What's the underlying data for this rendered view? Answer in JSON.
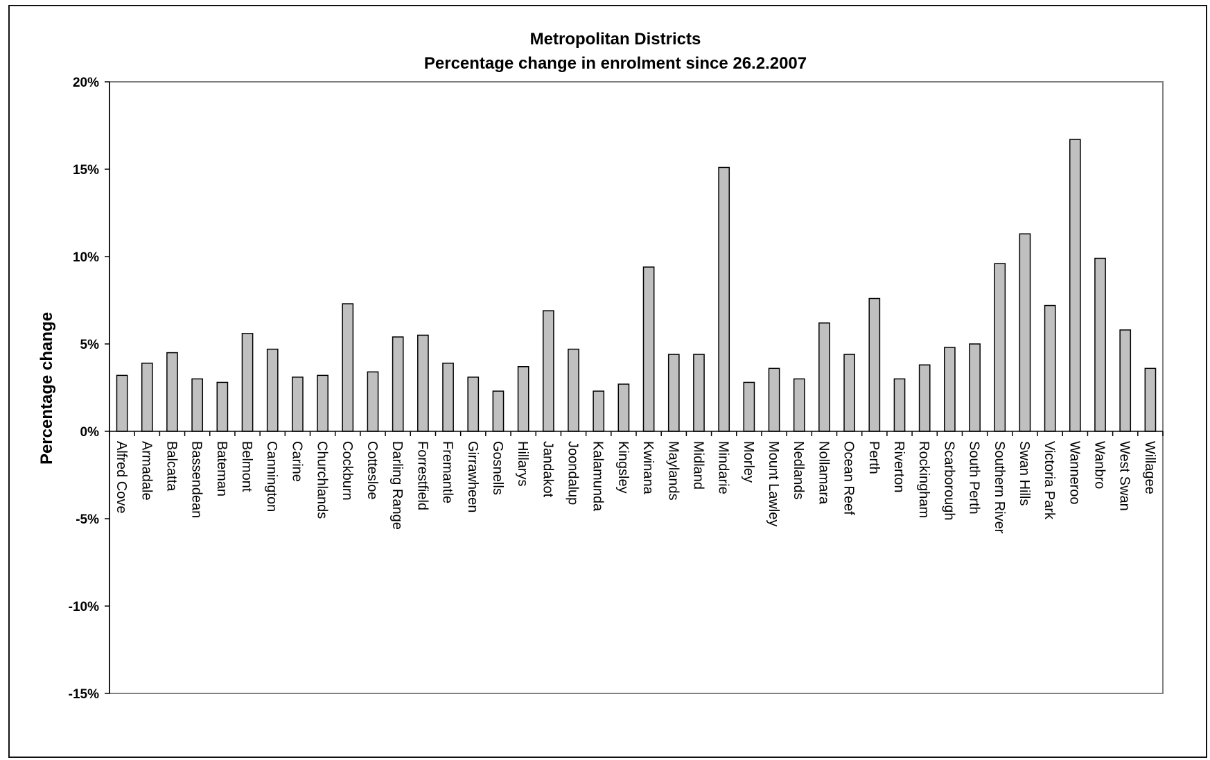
{
  "chart_data": {
    "type": "bar",
    "title": "Metropolitan Districts",
    "subtitle": "Percentage change in enrolment since 26.2.2007",
    "xlabel": "",
    "ylabel": "Percentage change",
    "ylim": [
      -15,
      20
    ],
    "ytick_step": 5,
    "ytick_labels": [
      "20%",
      "15%",
      "10%",
      "5%",
      "0%",
      "-5%",
      "-10%",
      "-15%"
    ],
    "grid": false,
    "legend": "none",
    "colors": {
      "bar_fill": "#c0c0c0",
      "bar_stroke": "#000000",
      "plot_border": "#808080",
      "axis": "#000000"
    },
    "categories": [
      "Alfred Cove",
      "Armadale",
      "Balcatta",
      "Bassendean",
      "Bateman",
      "Belmont",
      "Cannington",
      "Carine",
      "Churchlands",
      "Cockburn",
      "Cottesloe",
      "Darling Range",
      "Forrestfield",
      "Fremantle",
      "Girrawheen",
      "Gosnells",
      "Hillarys",
      "Jandakot",
      "Joondalup",
      "Kalamunda",
      "Kingsley",
      "Kwinana",
      "Maylands",
      "Midland",
      "Mindarie",
      "Morley",
      "Mount Lawley",
      "Nedlands",
      "Nollamara",
      "Ocean Reef",
      "Perth",
      "Riverton",
      "Rockingham",
      "Scarborough",
      "South Perth",
      "Southern River",
      "Swan Hills",
      "Victoria Park",
      "Wanneroo",
      "Wanbro",
      "West Swan",
      "Willagee"
    ],
    "values": [
      3.2,
      3.9,
      4.5,
      3.0,
      2.8,
      5.6,
      4.7,
      3.1,
      3.2,
      7.3,
      3.4,
      5.4,
      5.5,
      3.9,
      3.1,
      2.3,
      3.7,
      6.9,
      4.7,
      2.3,
      2.7,
      9.4,
      4.4,
      4.4,
      15.1,
      2.8,
      3.6,
      3.0,
      6.2,
      4.4,
      7.6,
      3.0,
      3.8,
      4.8,
      5.0,
      9.6,
      11.3,
      7.2,
      16.7,
      9.9,
      5.8,
      3.6
    ]
  }
}
